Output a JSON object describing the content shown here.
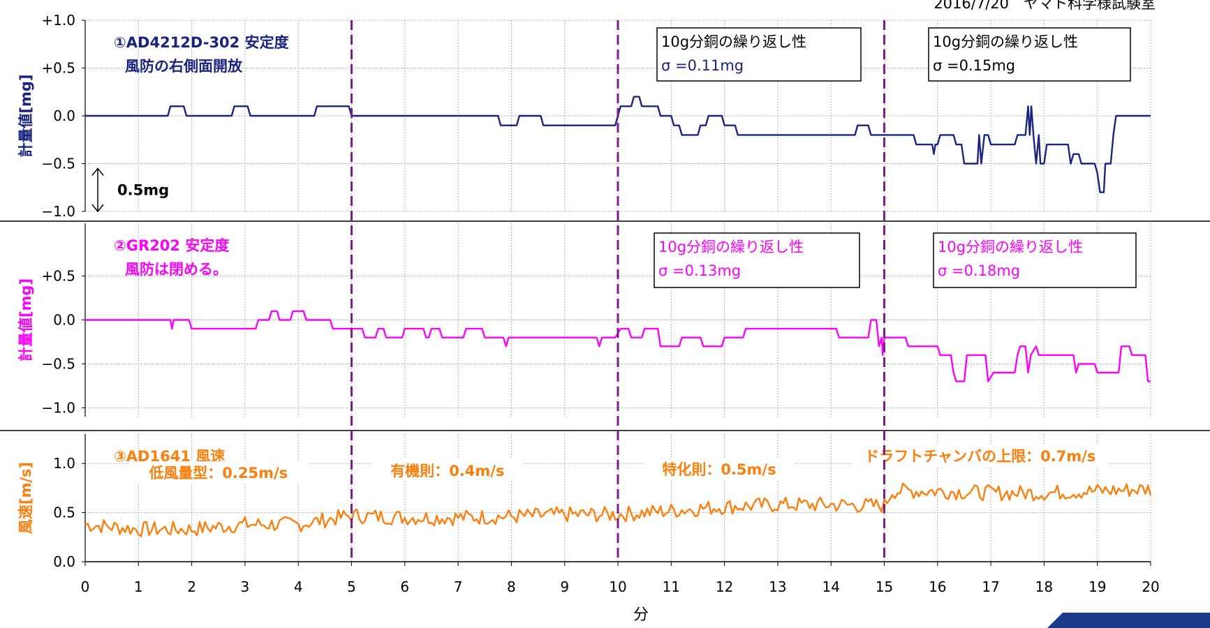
{
  "header_note": "2016/7/20　ヤマト科学様試験室",
  "chart_data": {
    "type": "line",
    "x_label": "分",
    "x_range": [
      0,
      20
    ],
    "x_ticks": [
      "0",
      "1",
      "2",
      "3",
      "4",
      "5",
      "6",
      "7",
      "8",
      "9",
      "10",
      "11",
      "12",
      "13",
      "14",
      "15",
      "16",
      "17",
      "18",
      "19",
      "20"
    ],
    "dividers": [
      5,
      10,
      15
    ],
    "panels": [
      {
        "id": "p1",
        "color": "#1a237e",
        "ylabel": "計量値[mg]",
        "ylim": [
          -1.0,
          1.0
        ],
        "y_ticks": [
          {
            "v": 1.0,
            "label": "+1.0"
          },
          {
            "v": 0.5,
            "label": "+0.5"
          },
          {
            "v": 0.0,
            "label": "0.0"
          },
          {
            "v": -0.5,
            "label": "−0.5"
          },
          {
            "v": -1.0,
            "label": "−1.0"
          }
        ],
        "title_line1": "①AD4212D-302  安定度",
        "title_line2": "風防の右側面開放",
        "scale_label": "0.5mg",
        "boxes": [
          {
            "line1": "10g分銅の繰り返し性",
            "line2": "σ  =0.11mg",
            "color1": "#000000",
            "color2": "#1a237e"
          },
          {
            "line1": "10g分銅の繰り返し性",
            "line2": "σ  =0.15mg",
            "color1": "#000000",
            "color2": "#000000"
          }
        ],
        "points": [
          [
            0,
            0
          ],
          [
            1.55,
            0
          ],
          [
            1.6,
            0.1
          ],
          [
            1.85,
            0.1
          ],
          [
            1.9,
            0
          ],
          [
            2.75,
            0
          ],
          [
            2.8,
            0.1
          ],
          [
            3.05,
            0.1
          ],
          [
            3.1,
            0
          ],
          [
            4.3,
            0
          ],
          [
            4.35,
            0.1
          ],
          [
            4.95,
            0.1
          ],
          [
            5.0,
            0
          ],
          [
            7.75,
            0
          ],
          [
            7.8,
            -0.1
          ],
          [
            8.1,
            -0.1
          ],
          [
            8.15,
            0
          ],
          [
            8.55,
            0
          ],
          [
            8.6,
            -0.1
          ],
          [
            9.95,
            -0.1
          ],
          [
            10.05,
            0.1
          ],
          [
            10.25,
            0.1
          ],
          [
            10.3,
            0.2
          ],
          [
            10.4,
            0.2
          ],
          [
            10.45,
            0.1
          ],
          [
            10.75,
            0.1
          ],
          [
            10.8,
            0
          ],
          [
            11.0,
            0
          ],
          [
            11.05,
            -0.1
          ],
          [
            11.15,
            -0.1
          ],
          [
            11.2,
            -0.2
          ],
          [
            11.5,
            -0.2
          ],
          [
            11.55,
            -0.1
          ],
          [
            11.65,
            -0.1
          ],
          [
            11.7,
            0
          ],
          [
            11.95,
            0
          ],
          [
            12.0,
            -0.1
          ],
          [
            12.2,
            -0.1
          ],
          [
            12.25,
            -0.2
          ],
          [
            14.45,
            -0.2
          ],
          [
            14.5,
            -0.1
          ],
          [
            14.7,
            -0.1
          ],
          [
            14.75,
            -0.2
          ],
          [
            15.55,
            -0.2
          ],
          [
            15.6,
            -0.3
          ],
          [
            15.9,
            -0.3
          ],
          [
            15.93,
            -0.4
          ],
          [
            15.96,
            -0.3
          ],
          [
            16.0,
            -0.3
          ],
          [
            16.05,
            -0.2
          ],
          [
            16.3,
            -0.2
          ],
          [
            16.35,
            -0.3
          ],
          [
            16.45,
            -0.3
          ],
          [
            16.5,
            -0.5
          ],
          [
            16.75,
            -0.5
          ],
          [
            16.78,
            -0.2
          ],
          [
            16.82,
            -0.5
          ],
          [
            16.88,
            -0.2
          ],
          [
            16.95,
            -0.2
          ],
          [
            17.0,
            -0.3
          ],
          [
            17.45,
            -0.3
          ],
          [
            17.5,
            -0.2
          ],
          [
            17.65,
            -0.2
          ],
          [
            17.7,
            0.1
          ],
          [
            17.73,
            -0.2
          ],
          [
            17.76,
            0.1
          ],
          [
            17.8,
            -0.2
          ],
          [
            17.85,
            -0.5
          ],
          [
            17.9,
            -0.2
          ],
          [
            17.93,
            -0.5
          ],
          [
            18.0,
            -0.5
          ],
          [
            18.05,
            -0.3
          ],
          [
            18.45,
            -0.3
          ],
          [
            18.5,
            -0.5
          ],
          [
            18.55,
            -0.4
          ],
          [
            18.65,
            -0.4
          ],
          [
            18.7,
            -0.5
          ],
          [
            18.95,
            -0.5
          ],
          [
            19.0,
            -0.6
          ],
          [
            19.05,
            -0.8
          ],
          [
            19.12,
            -0.8
          ],
          [
            19.15,
            -0.5
          ],
          [
            19.25,
            -0.5
          ],
          [
            19.3,
            -0.2
          ],
          [
            19.35,
            0
          ],
          [
            20,
            0
          ]
        ]
      },
      {
        "id": "p2",
        "color": "#ff00ff",
        "ylabel": "計量値[mg]",
        "ylim": [
          -1.1,
          1.1
        ],
        "y_ticks": [
          {
            "v": 0.5,
            "label": "+0.5"
          },
          {
            "v": 0.0,
            "label": "0.0"
          },
          {
            "v": -0.5,
            "label": "−0.5"
          },
          {
            "v": -1.0,
            "label": "−1.0"
          }
        ],
        "title_line1": "②GR202  安定度",
        "title_line2": "風防は閉める。",
        "boxes": [
          {
            "line1": "10g分銅の繰り返し性",
            "line2": "σ  =0.13mg",
            "color1": "#ff00ff",
            "color2": "#ff00ff"
          },
          {
            "line1": "10g分銅の繰り返し性",
            "line2": "σ  =0.18mg",
            "color1": "#ff00ff",
            "color2": "#ff00ff"
          }
        ],
        "points": [
          [
            0,
            0
          ],
          [
            1.6,
            0
          ],
          [
            1.63,
            -0.1
          ],
          [
            1.66,
            0
          ],
          [
            1.95,
            0
          ],
          [
            2.0,
            -0.1
          ],
          [
            3.2,
            -0.1
          ],
          [
            3.25,
            0
          ],
          [
            3.45,
            0
          ],
          [
            3.5,
            0.1
          ],
          [
            3.6,
            0.1
          ],
          [
            3.65,
            0
          ],
          [
            3.85,
            0
          ],
          [
            3.9,
            0.1
          ],
          [
            4.1,
            0.1
          ],
          [
            4.15,
            0
          ],
          [
            4.6,
            0
          ],
          [
            4.65,
            -0.1
          ],
          [
            5.2,
            -0.1
          ],
          [
            5.25,
            -0.2
          ],
          [
            5.45,
            -0.2
          ],
          [
            5.5,
            -0.1
          ],
          [
            5.6,
            -0.1
          ],
          [
            5.65,
            -0.2
          ],
          [
            5.95,
            -0.2
          ],
          [
            6.0,
            -0.1
          ],
          [
            6.35,
            -0.1
          ],
          [
            6.4,
            -0.2
          ],
          [
            6.45,
            -0.2
          ],
          [
            6.5,
            -0.1
          ],
          [
            6.65,
            -0.1
          ],
          [
            6.7,
            -0.2
          ],
          [
            7.1,
            -0.2
          ],
          [
            7.15,
            -0.1
          ],
          [
            7.45,
            -0.1
          ],
          [
            7.5,
            -0.2
          ],
          [
            7.85,
            -0.2
          ],
          [
            7.9,
            -0.3
          ],
          [
            7.95,
            -0.2
          ],
          [
            9.6,
            -0.2
          ],
          [
            9.65,
            -0.3
          ],
          [
            9.7,
            -0.2
          ],
          [
            9.95,
            -0.2
          ],
          [
            10.05,
            -0.1
          ],
          [
            10.2,
            -0.1
          ],
          [
            10.25,
            -0.2
          ],
          [
            10.45,
            -0.2
          ],
          [
            10.5,
            -0.1
          ],
          [
            10.75,
            -0.1
          ],
          [
            10.8,
            -0.3
          ],
          [
            11.15,
            -0.3
          ],
          [
            11.2,
            -0.2
          ],
          [
            11.55,
            -0.2
          ],
          [
            11.6,
            -0.3
          ],
          [
            11.95,
            -0.3
          ],
          [
            12.0,
            -0.2
          ],
          [
            12.35,
            -0.2
          ],
          [
            12.4,
            -0.1
          ],
          [
            14.1,
            -0.1
          ],
          [
            14.15,
            -0.2
          ],
          [
            14.7,
            -0.2
          ],
          [
            14.75,
            0
          ],
          [
            14.85,
            0
          ],
          [
            14.9,
            -0.3
          ],
          [
            14.95,
            -0.2
          ],
          [
            14.97,
            -0.4
          ],
          [
            15.0,
            -0.2
          ],
          [
            15.05,
            -0.2
          ],
          [
            15.1,
            -0.2
          ],
          [
            15.4,
            -0.2
          ],
          [
            15.45,
            -0.3
          ],
          [
            16.0,
            -0.3
          ],
          [
            16.05,
            -0.4
          ],
          [
            16.25,
            -0.4
          ],
          [
            16.3,
            -0.6
          ],
          [
            16.35,
            -0.7
          ],
          [
            16.5,
            -0.7
          ],
          [
            16.55,
            -0.4
          ],
          [
            16.9,
            -0.4
          ],
          [
            16.95,
            -0.7
          ],
          [
            17.05,
            -0.6
          ],
          [
            17.45,
            -0.6
          ],
          [
            17.5,
            -0.4
          ],
          [
            17.55,
            -0.3
          ],
          [
            17.65,
            -0.3
          ],
          [
            17.7,
            -0.6
          ],
          [
            17.75,
            -0.4
          ],
          [
            17.85,
            -0.3
          ],
          [
            17.9,
            -0.4
          ],
          [
            18.55,
            -0.4
          ],
          [
            18.6,
            -0.6
          ],
          [
            18.65,
            -0.5
          ],
          [
            18.95,
            -0.5
          ],
          [
            19.0,
            -0.6
          ],
          [
            19.4,
            -0.6
          ],
          [
            19.45,
            -0.3
          ],
          [
            19.6,
            -0.3
          ],
          [
            19.65,
            -0.4
          ],
          [
            19.9,
            -0.4
          ],
          [
            19.95,
            -0.7
          ],
          [
            20,
            -0.7
          ]
        ]
      },
      {
        "id": "p3",
        "color": "#ff7f0e",
        "ylabel": "風速[m/s]",
        "ylim": [
          0.0,
          1.3
        ],
        "y_ticks": [
          {
            "v": 1.0,
            "label": "1.0"
          },
          {
            "v": 0.5,
            "label": "0.5"
          },
          {
            "v": 0.0,
            "label": "0.0"
          }
        ],
        "title_line1": "③AD1641  風速",
        "segment_labels": [
          {
            "text": "低風量型：0.25m/s",
            "x": 2.5
          },
          {
            "text": "有機則：0.4m/s",
            "x": 6.8
          },
          {
            "text": "特化則：0.5m/s",
            "x": 11.9
          },
          {
            "text": "ドラフトチャンバの上限：0.7m/s",
            "x": 16.8
          }
        ],
        "levels": [
          [
            0,
            0.38
          ],
          [
            1,
            0.33
          ],
          [
            2,
            0.33
          ],
          [
            3,
            0.38
          ],
          [
            4,
            0.38
          ],
          [
            5,
            0.47
          ],
          [
            6,
            0.45
          ],
          [
            7,
            0.45
          ],
          [
            8,
            0.46
          ],
          [
            9,
            0.48
          ],
          [
            10,
            0.48
          ],
          [
            11,
            0.52
          ],
          [
            12,
            0.56
          ],
          [
            13,
            0.58
          ],
          [
            14,
            0.58
          ],
          [
            15,
            0.57
          ],
          [
            15.15,
            0.72
          ],
          [
            16,
            0.72
          ],
          [
            17,
            0.7
          ],
          [
            18,
            0.7
          ],
          [
            19,
            0.72
          ],
          [
            20,
            0.74
          ]
        ]
      }
    ]
  }
}
